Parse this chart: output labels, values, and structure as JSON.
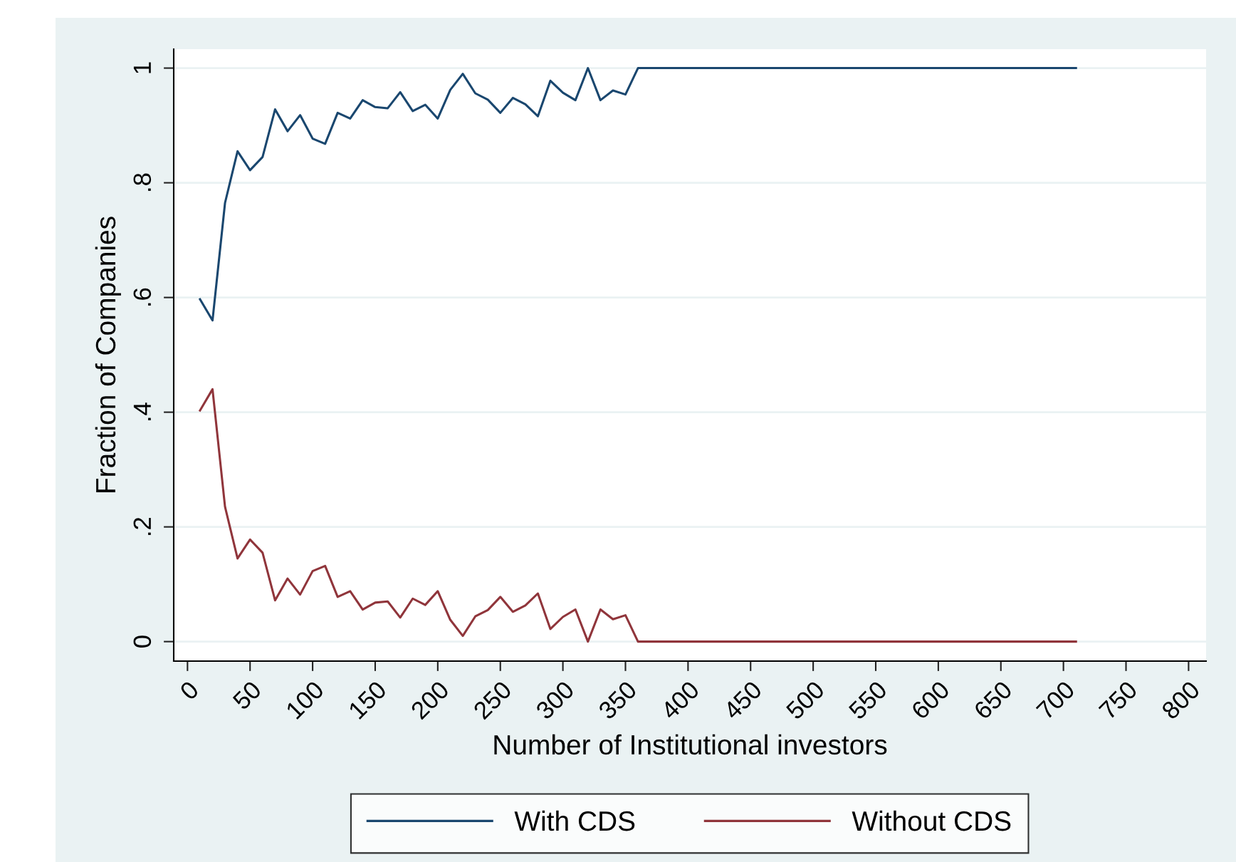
{
  "chart_data": {
    "type": "line",
    "xlabel": "Number of Institutional investors",
    "ylabel": "Fraction of Companies",
    "x": [
      10,
      20,
      30,
      40,
      50,
      60,
      70,
      80,
      90,
      100,
      110,
      120,
      130,
      140,
      150,
      160,
      170,
      180,
      190,
      200,
      210,
      220,
      230,
      240,
      250,
      260,
      270,
      280,
      290,
      300,
      310,
      320,
      330,
      340,
      350,
      360,
      710
    ],
    "series": [
      {
        "name": "With CDS",
        "color": "#1a476f",
        "values": [
          0.597,
          0.56,
          0.765,
          0.855,
          0.822,
          0.845,
          0.928,
          0.89,
          0.918,
          0.877,
          0.868,
          0.922,
          0.912,
          0.944,
          0.932,
          0.93,
          0.958,
          0.925,
          0.936,
          0.912,
          0.962,
          0.99,
          0.956,
          0.945,
          0.922,
          0.948,
          0.937,
          0.916,
          0.978,
          0.957,
          0.944,
          1.0,
          0.944,
          0.961,
          0.954,
          1.0,
          1.0
        ]
      },
      {
        "name": "Without CDS",
        "color": "#90353b",
        "values": [
          0.403,
          0.44,
          0.235,
          0.145,
          0.178,
          0.155,
          0.072,
          0.11,
          0.082,
          0.123,
          0.132,
          0.078,
          0.088,
          0.056,
          0.068,
          0.07,
          0.042,
          0.075,
          0.064,
          0.088,
          0.038,
          0.01,
          0.044,
          0.055,
          0.078,
          0.052,
          0.063,
          0.084,
          0.022,
          0.043,
          0.056,
          0.0,
          0.056,
          0.039,
          0.046,
          0.0,
          0.0
        ]
      }
    ],
    "xlim": [
      -11,
      814
    ],
    "xticks": [
      0,
      50,
      100,
      150,
      200,
      250,
      300,
      350,
      400,
      450,
      500,
      550,
      600,
      650,
      700,
      750,
      800
    ],
    "ylim": [
      -0.034,
      1.033
    ],
    "yticks": [
      {
        "value": 0,
        "label": "0"
      },
      {
        "value": 0.2,
        "label": ".2"
      },
      {
        "value": 0.4,
        "label": ".4"
      },
      {
        "value": 0.6,
        "label": ".6"
      },
      {
        "value": 0.8,
        "label": ".8"
      },
      {
        "value": 1,
        "label": "1"
      }
    ],
    "grid": "y",
    "legend": "bottom",
    "marker": "none",
    "line_style": "solid"
  }
}
